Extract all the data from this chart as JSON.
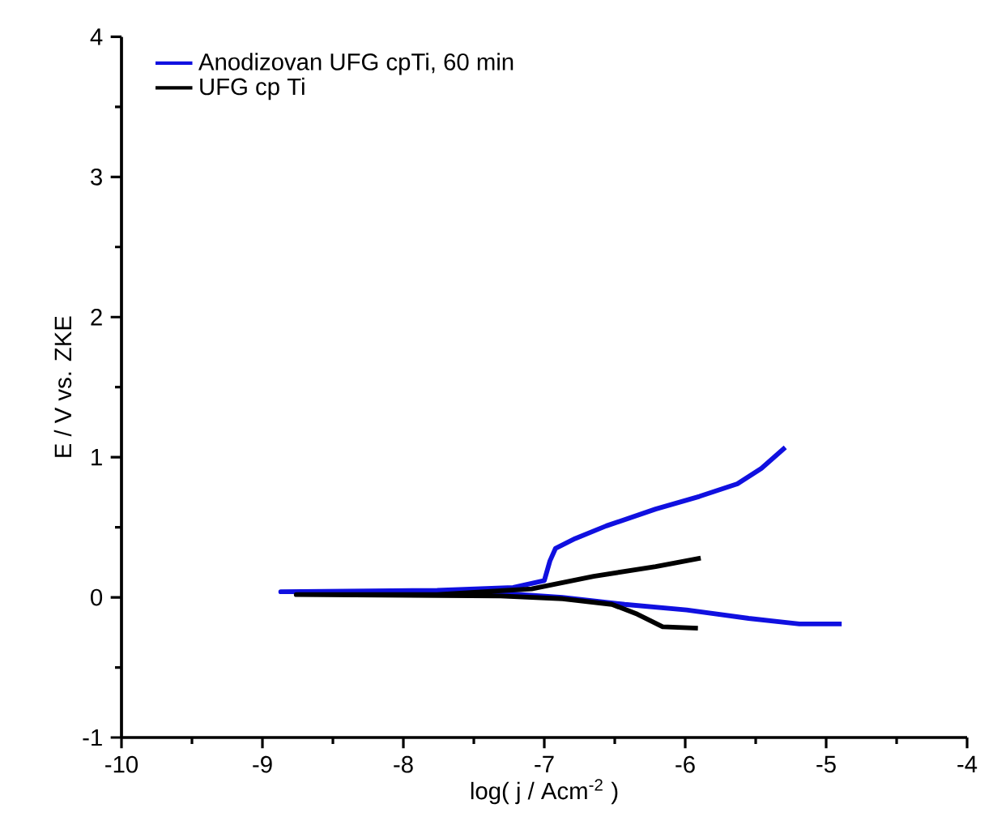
{
  "chart_data": {
    "type": "line",
    "xlabel": "log( j / Acm$^{-2}$ )",
    "ylabel": "E / V vs. ZKE",
    "xlim": [
      -10,
      -4
    ],
    "ylim": [
      -1,
      4
    ],
    "xticks": [
      -10,
      -9,
      -8,
      -7,
      -6,
      -5,
      -4
    ],
    "yticks": [
      -1,
      0,
      1,
      2,
      3,
      4
    ],
    "legend": "top left",
    "grid": false,
    "series": [
      {
        "name": "Anodizovan UFG cpTi, 60 min",
        "color": "#1010e0",
        "x": [
          -4.89,
          -5.19,
          -5.55,
          -5.99,
          -6.43,
          -6.87,
          -7.31,
          -8.2,
          -8.87,
          -7.76,
          -7.22,
          -7.0,
          -6.96,
          -6.92,
          -6.78,
          -6.56,
          -6.21,
          -5.9,
          -5.63,
          -5.46,
          -5.29
        ],
        "values": [
          -0.19,
          -0.19,
          -0.15,
          -0.09,
          -0.05,
          0.0,
          0.03,
          0.04,
          0.04,
          0.05,
          0.07,
          0.12,
          0.26,
          0.35,
          0.42,
          0.51,
          0.63,
          0.72,
          0.81,
          0.92,
          1.07
        ]
      },
      {
        "name": "UFG cp Ti",
        "color": "#000000",
        "x": [
          -5.91,
          -6.16,
          -6.34,
          -6.52,
          -6.87,
          -7.31,
          -8.76,
          -7.76,
          -7.09,
          -6.65,
          -6.21,
          -5.89
        ],
        "values": [
          -0.22,
          -0.21,
          -0.12,
          -0.05,
          -0.01,
          0.01,
          0.02,
          0.02,
          0.06,
          0.15,
          0.22,
          0.28
        ]
      }
    ]
  }
}
